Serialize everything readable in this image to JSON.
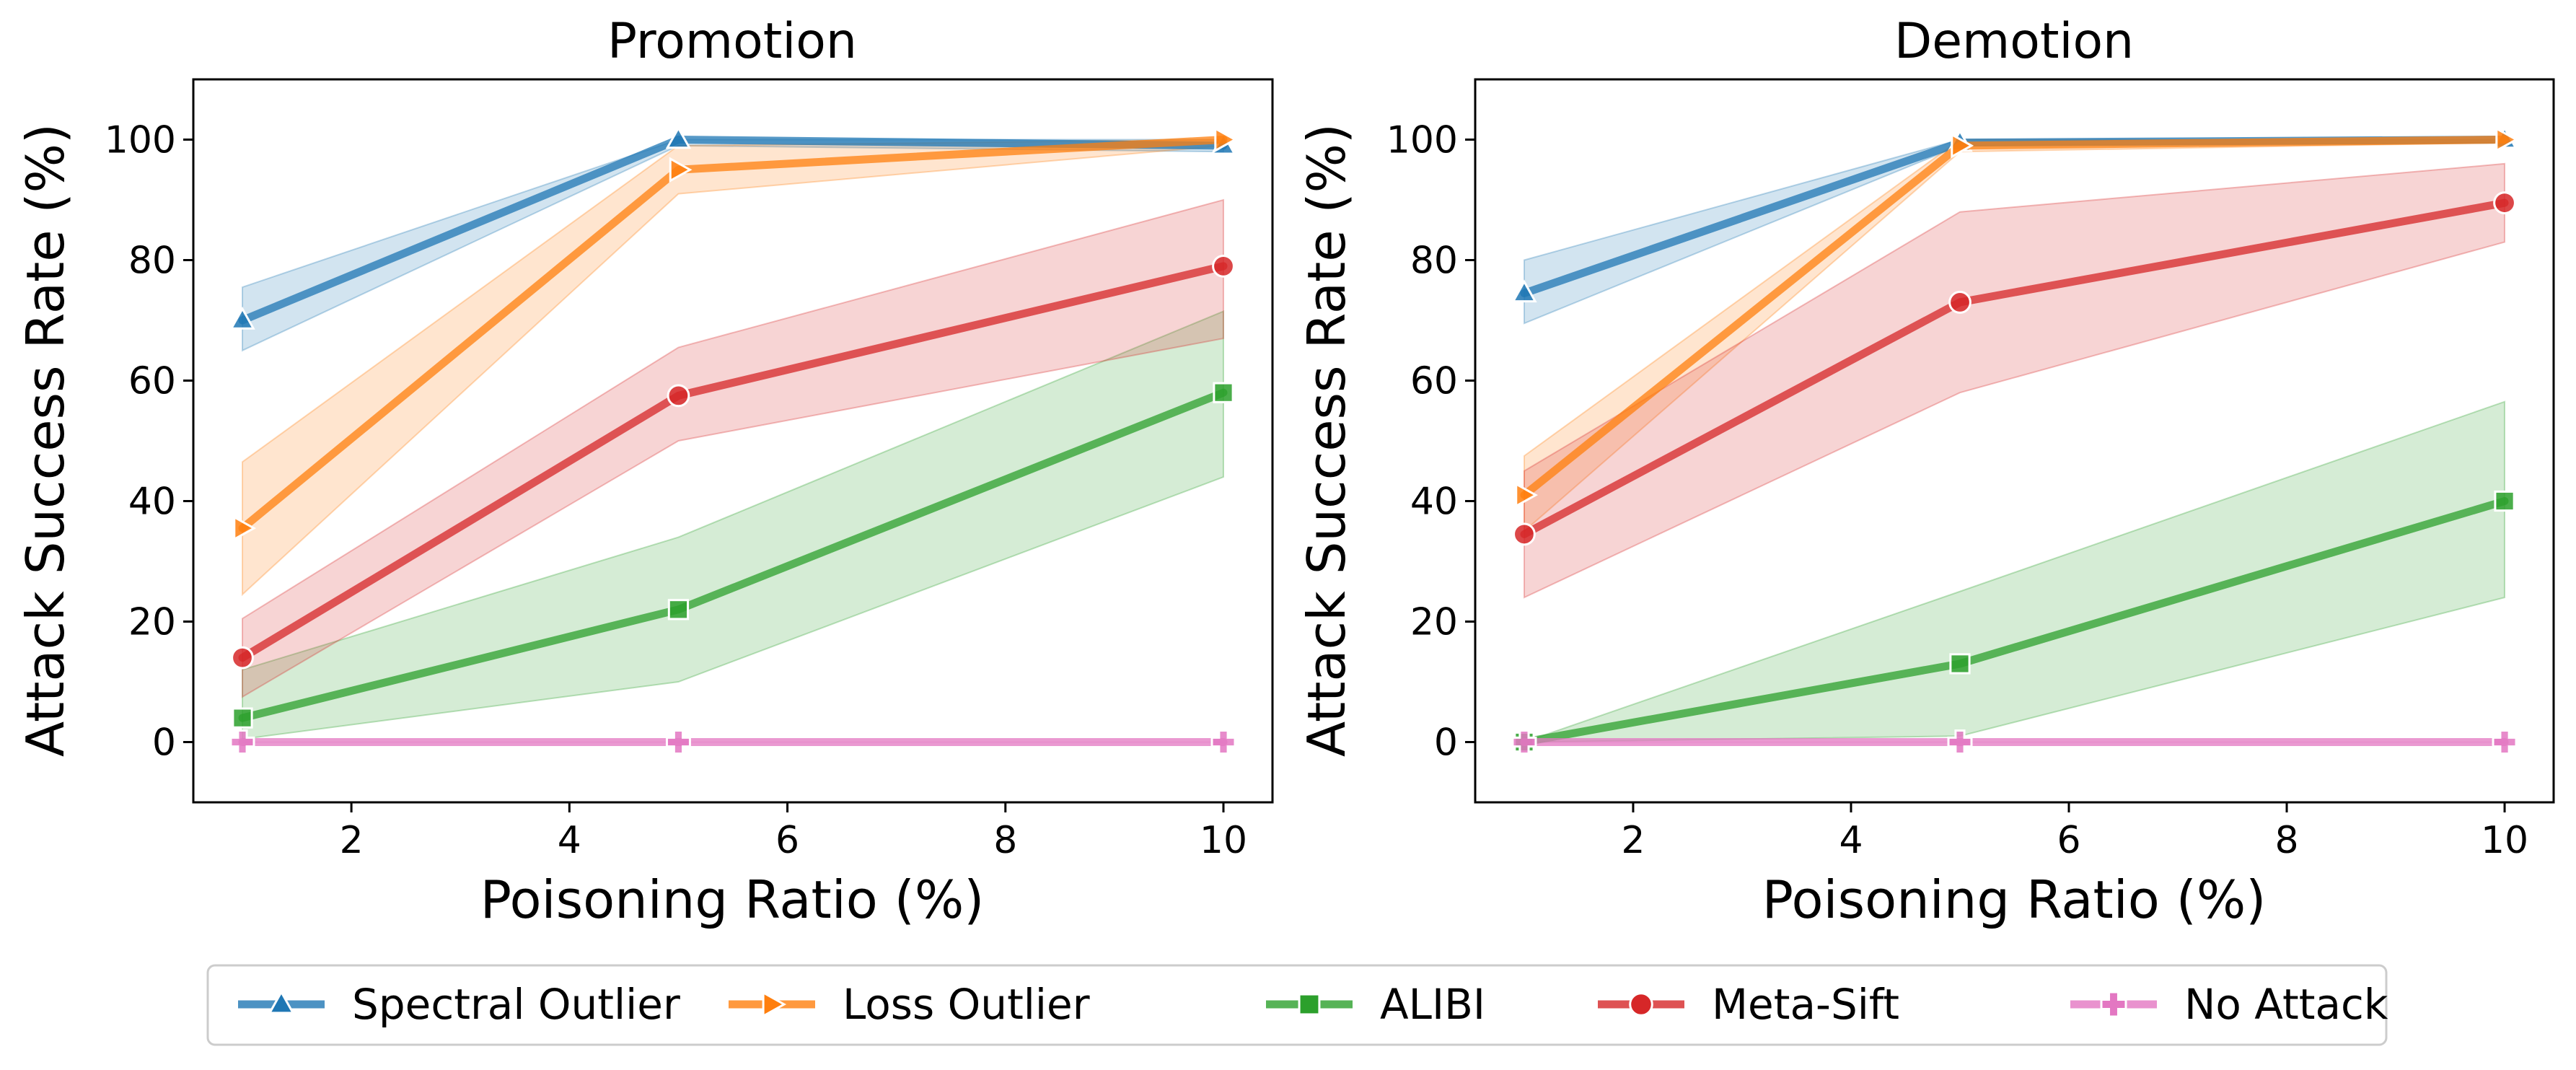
{
  "chart_data": [
    {
      "type": "line",
      "title": "Promotion",
      "xlabel": "Poisoning Ratio (%)",
      "ylabel": "Attack Success Rate (%)",
      "xlim": [
        0.55,
        10.45
      ],
      "ylim": [
        -10,
        110
      ],
      "xticks": [
        2,
        4,
        6,
        8,
        10
      ],
      "yticks": [
        0,
        20,
        40,
        60,
        80,
        100
      ],
      "x": [
        1,
        5,
        10
      ],
      "series": [
        {
          "name": "Spectral Outlier",
          "values": [
            70,
            100,
            99
          ],
          "lower": [
            65,
            99,
            98
          ],
          "upper": [
            75.5,
            100,
            100
          ]
        },
        {
          "name": "Loss Outlier",
          "values": [
            35.5,
            95,
            100
          ],
          "lower": [
            24.5,
            91,
            99
          ],
          "upper": [
            46.5,
            99,
            100
          ]
        },
        {
          "name": "ALIBI",
          "values": [
            4,
            22,
            58
          ],
          "lower": [
            0.5,
            10,
            44
          ],
          "upper": [
            12,
            34,
            71.5
          ]
        },
        {
          "name": "Meta-Sift",
          "values": [
            14,
            57.5,
            79
          ],
          "lower": [
            7.5,
            50,
            67
          ],
          "upper": [
            20.5,
            65.5,
            90
          ]
        },
        {
          "name": "No Attack",
          "values": [
            0,
            0,
            0
          ],
          "lower": [
            0,
            0,
            0
          ],
          "upper": [
            0,
            0,
            0
          ]
        }
      ]
    },
    {
      "type": "line",
      "title": "Demotion",
      "xlabel": "Poisoning Ratio (%)",
      "ylabel": "Attack Success Rate (%)",
      "xlim": [
        0.55,
        10.45
      ],
      "ylim": [
        -10,
        110
      ],
      "xticks": [
        2,
        4,
        6,
        8,
        10
      ],
      "yticks": [
        0,
        20,
        40,
        60,
        80,
        100
      ],
      "x": [
        1,
        5,
        10
      ],
      "series": [
        {
          "name": "Spectral Outlier",
          "values": [
            74.5,
            99.5,
            100
          ],
          "lower": [
            69.5,
            99,
            99.5
          ],
          "upper": [
            80,
            100,
            100
          ]
        },
        {
          "name": "Loss Outlier",
          "values": [
            41,
            99,
            100
          ],
          "lower": [
            35,
            98,
            99.5
          ],
          "upper": [
            47.5,
            100,
            100
          ]
        },
        {
          "name": "ALIBI",
          "values": [
            0,
            13,
            40
          ],
          "lower": [
            0,
            1,
            24
          ],
          "upper": [
            0,
            25,
            56.5
          ]
        },
        {
          "name": "Meta-Sift",
          "values": [
            34.5,
            73,
            89.5
          ],
          "lower": [
            24,
            58,
            83
          ],
          "upper": [
            45,
            88,
            96
          ]
        },
        {
          "name": "No Attack",
          "values": [
            0,
            0,
            0
          ],
          "lower": [
            0,
            0,
            0
          ],
          "upper": [
            0,
            0,
            0
          ]
        }
      ]
    }
  ],
  "legend": {
    "placement": "bottom-center",
    "entries": [
      "Spectral Outlier",
      "Loss Outlier",
      "ALIBI",
      "Meta-Sift",
      "No Attack"
    ]
  },
  "colors": {
    "Spectral Outlier": "#1f77b4",
    "Loss Outlier": "#ff7f0e",
    "ALIBI": "#2ca02c",
    "Meta-Sift": "#d62728",
    "No Attack": "#e377c2"
  },
  "markers": {
    "Spectral Outlier": "triangle-up-icon",
    "Loss Outlier": "triangle-right-icon",
    "ALIBI": "square-icon",
    "Meta-Sift": "circle-icon",
    "No Attack": "plus-icon"
  }
}
